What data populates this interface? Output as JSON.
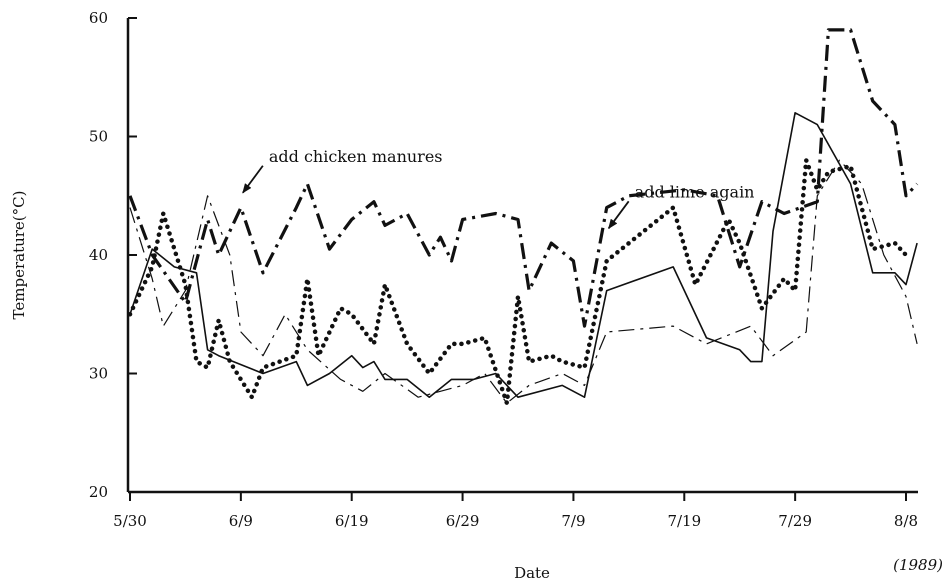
{
  "chart_data": {
    "type": "line",
    "xlabel": "Date",
    "ylabel": "Temperature(°C)",
    "year_note": "(1989)",
    "ylim": [
      20,
      60
    ],
    "yticks": [
      20,
      30,
      40,
      50,
      60
    ],
    "xlim": [
      "1989-05-30",
      "1989-08-10"
    ],
    "xticks": [
      {
        "date": "1989-05-30",
        "label": "5/30"
      },
      {
        "date": "1989-06-09",
        "label": "6/9"
      },
      {
        "date": "1989-06-19",
        "label": "6/19"
      },
      {
        "date": "1989-06-29",
        "label": "6/29"
      },
      {
        "date": "1989-07-09",
        "label": "7/9"
      },
      {
        "date": "1989-07-19",
        "label": "7/19"
      },
      {
        "date": "1989-07-29",
        "label": "7/29"
      },
      {
        "date": "1989-08-08",
        "label": "8/8"
      }
    ],
    "grid": false,
    "annotations": [
      {
        "text": "add chicken manures",
        "date": "1989-06-09",
        "value": 45
      },
      {
        "text": "add lime again",
        "date": "1989-07-12",
        "value": 42
      }
    ],
    "series": [
      {
        "style": "dash-dot-heavy",
        "color": "#111111",
        "points": [
          [
            "1989-05-30",
            45
          ],
          [
            "1989-06-01",
            40
          ],
          [
            "1989-06-04",
            36
          ],
          [
            "1989-06-06",
            43
          ],
          [
            "1989-06-07",
            40
          ],
          [
            "1989-06-09",
            44
          ],
          [
            "1989-06-11",
            38.5
          ],
          [
            "1989-06-14",
            44
          ],
          [
            "1989-06-15",
            46
          ],
          [
            "1989-06-17",
            40.5
          ],
          [
            "1989-06-19",
            43
          ],
          [
            "1989-06-21",
            44.5
          ],
          [
            "1989-06-22",
            42.5
          ],
          [
            "1989-06-24",
            43.5
          ],
          [
            "1989-06-26",
            40
          ],
          [
            "1989-06-27",
            41.5
          ],
          [
            "1989-06-28",
            39.5
          ],
          [
            "1989-06-29",
            43
          ],
          [
            "1989-07-02",
            43.5
          ],
          [
            "1989-07-04",
            43
          ],
          [
            "1989-07-05",
            37
          ],
          [
            "1989-07-07",
            41
          ],
          [
            "1989-07-09",
            39.5
          ],
          [
            "1989-07-10",
            34
          ],
          [
            "1989-07-12",
            44
          ],
          [
            "1989-07-14",
            45
          ],
          [
            "1989-07-19",
            45.5
          ],
          [
            "1989-07-22",
            45
          ],
          [
            "1989-07-24",
            39
          ],
          [
            "1989-07-26",
            44.5
          ],
          [
            "1989-07-28",
            43.5
          ],
          [
            "1989-07-31",
            44.5
          ],
          [
            "1989-08-01",
            59
          ],
          [
            "1989-08-03",
            59
          ],
          [
            "1989-08-05",
            53
          ],
          [
            "1989-08-07",
            51
          ],
          [
            "1989-08-08",
            45
          ],
          [
            "1989-08-09",
            46
          ]
        ]
      },
      {
        "style": "dotted-heavy",
        "color": "#111111",
        "points": [
          [
            "1989-05-30",
            35
          ],
          [
            "1989-06-01",
            39
          ],
          [
            "1989-06-02",
            43.5
          ],
          [
            "1989-06-04",
            37.5
          ],
          [
            "1989-06-05",
            31
          ],
          [
            "1989-06-06",
            30.5
          ],
          [
            "1989-06-07",
            34.5
          ],
          [
            "1989-06-08",
            31
          ],
          [
            "1989-06-10",
            28
          ],
          [
            "1989-06-11",
            30.5
          ],
          [
            "1989-06-14",
            31.5
          ],
          [
            "1989-06-15",
            38
          ],
          [
            "1989-06-16",
            31.5
          ],
          [
            "1989-06-18",
            35.5
          ],
          [
            "1989-06-19",
            35
          ],
          [
            "1989-06-21",
            32.5
          ],
          [
            "1989-06-22",
            37.5
          ],
          [
            "1989-06-24",
            32.5
          ],
          [
            "1989-06-26",
            30
          ],
          [
            "1989-06-28",
            32.5
          ],
          [
            "1989-06-29",
            32.5
          ],
          [
            "1989-07-01",
            33
          ],
          [
            "1989-07-03",
            27.5
          ],
          [
            "1989-07-04",
            36.5
          ],
          [
            "1989-07-05",
            31
          ],
          [
            "1989-07-07",
            31.5
          ],
          [
            "1989-07-08",
            31
          ],
          [
            "1989-07-10",
            30.5
          ],
          [
            "1989-07-12",
            39.5
          ],
          [
            "1989-07-18",
            44
          ],
          [
            "1989-07-20",
            37.5
          ],
          [
            "1989-07-23",
            43
          ],
          [
            "1989-07-24",
            41
          ],
          [
            "1989-07-26",
            35.5
          ],
          [
            "1989-07-28",
            38
          ],
          [
            "1989-07-29",
            37
          ],
          [
            "1989-07-30",
            48
          ],
          [
            "1989-07-31",
            45.5
          ],
          [
            "1989-08-01",
            47
          ],
          [
            "1989-08-03",
            47.5
          ],
          [
            "1989-08-05",
            40.5
          ],
          [
            "1989-08-07",
            41
          ],
          [
            "1989-08-08",
            40
          ]
        ]
      },
      {
        "style": "solid",
        "color": "#111111",
        "points": [
          [
            "1989-05-30",
            35
          ],
          [
            "1989-06-01",
            40.5
          ],
          [
            "1989-06-03",
            39
          ],
          [
            "1989-06-05",
            38.5
          ],
          [
            "1989-06-06",
            32
          ],
          [
            "1989-06-07",
            31.5
          ],
          [
            "1989-06-11",
            30
          ],
          [
            "1989-06-14",
            31
          ],
          [
            "1989-06-15",
            29
          ],
          [
            "1989-06-17",
            30
          ],
          [
            "1989-06-19",
            31.5
          ],
          [
            "1989-06-20",
            30.5
          ],
          [
            "1989-06-21",
            31
          ],
          [
            "1989-06-22",
            29.5
          ],
          [
            "1989-06-24",
            29.5
          ],
          [
            "1989-06-26",
            28
          ],
          [
            "1989-06-28",
            29.5
          ],
          [
            "1989-06-30",
            29.5
          ],
          [
            "1989-07-02",
            30
          ],
          [
            "1989-07-04",
            28
          ],
          [
            "1989-07-08",
            29
          ],
          [
            "1989-07-10",
            28
          ],
          [
            "1989-07-12",
            37
          ],
          [
            "1989-07-18",
            39
          ],
          [
            "1989-07-21",
            33
          ],
          [
            "1989-07-24",
            32
          ],
          [
            "1989-07-25",
            31
          ],
          [
            "1989-07-26",
            31
          ],
          [
            "1989-07-27",
            42
          ],
          [
            "1989-07-29",
            52
          ],
          [
            "1989-07-31",
            51
          ],
          [
            "1989-08-03",
            46
          ],
          [
            "1989-08-05",
            38.5
          ],
          [
            "1989-08-07",
            38.5
          ],
          [
            "1989-08-08",
            37.5
          ],
          [
            "1989-08-09",
            41
          ]
        ]
      },
      {
        "style": "dash-dot-thin",
        "color": "#111111",
        "points": [
          [
            "1989-05-30",
            44
          ],
          [
            "1989-06-01",
            38
          ],
          [
            "1989-06-02",
            34
          ],
          [
            "1989-06-04",
            37
          ],
          [
            "1989-06-06",
            45
          ],
          [
            "1989-06-08",
            40
          ],
          [
            "1989-06-09",
            33.5
          ],
          [
            "1989-06-11",
            31.5
          ],
          [
            "1989-06-13",
            35
          ],
          [
            "1989-06-15",
            32
          ],
          [
            "1989-06-18",
            29.5
          ],
          [
            "1989-06-20",
            28.5
          ],
          [
            "1989-06-22",
            30
          ],
          [
            "1989-06-25",
            28
          ],
          [
            "1989-06-27",
            28.5
          ],
          [
            "1989-06-29",
            29
          ],
          [
            "1989-07-01",
            30
          ],
          [
            "1989-07-03",
            27.5
          ],
          [
            "1989-07-05",
            29
          ],
          [
            "1989-07-08",
            30
          ],
          [
            "1989-07-10",
            29
          ],
          [
            "1989-07-12",
            33.5
          ],
          [
            "1989-07-18",
            34
          ],
          [
            "1989-07-21",
            32.5
          ],
          [
            "1989-07-25",
            34
          ],
          [
            "1989-07-27",
            31.5
          ],
          [
            "1989-07-30",
            33.5
          ],
          [
            "1989-07-31",
            45
          ],
          [
            "1989-08-02",
            48
          ],
          [
            "1989-08-04",
            46
          ],
          [
            "1989-08-06",
            40
          ],
          [
            "1989-08-08",
            36.5
          ],
          [
            "1989-08-09",
            32.5
          ]
        ]
      }
    ]
  }
}
